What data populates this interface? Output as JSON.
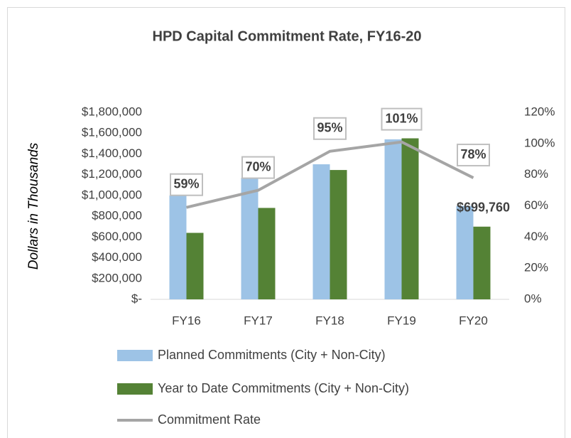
{
  "chart_data": {
    "type": "bar-line",
    "title": "HPD Capital Commitment Rate, FY16-20",
    "y_label": "Dollars in Thousands",
    "categories": [
      "FY16",
      "FY17",
      "FY18",
      "FY19",
      "FY20"
    ],
    "series": [
      {
        "name": "Planned Commitments (City + Non-City)",
        "type": "bar",
        "color": "#9dc3e6",
        "values": [
          1000000,
          1170000,
          1300000,
          1540000,
          900000
        ]
      },
      {
        "name": "Year to Date Commitments (City + Non-City)",
        "type": "bar",
        "color": "#548235",
        "values": [
          640000,
          880000,
          1245000,
          1550000,
          699760
        ],
        "value_labels": [
          null,
          null,
          null,
          null,
          "$699,760"
        ]
      },
      {
        "name": "Commitment Rate",
        "type": "line",
        "axis": "y2",
        "color": "#a5a5a5",
        "values": [
          59,
          70,
          95,
          101,
          78
        ],
        "value_labels": [
          "59%",
          "70%",
          "95%",
          "101%",
          "78%"
        ]
      }
    ],
    "ylim": [
      0,
      1800000
    ],
    "yticks": [
      {
        "value": 0,
        "label": "$-"
      },
      {
        "value": 200000,
        "label": "$200,000"
      },
      {
        "value": 400000,
        "label": "$400,000"
      },
      {
        "value": 600000,
        "label": "$600,000"
      },
      {
        "value": 800000,
        "label": "$800,000"
      },
      {
        "value": 1000000,
        "label": "$1,000,000"
      },
      {
        "value": 1200000,
        "label": "$1,200,000"
      },
      {
        "value": 1400000,
        "label": "$1,400,000"
      },
      {
        "value": 1600000,
        "label": "$1,600,000"
      },
      {
        "value": 1800000,
        "label": "$1,800,000"
      }
    ],
    "y2lim": [
      0,
      120
    ],
    "y2ticks": [
      {
        "value": 0,
        "label": "0%"
      },
      {
        "value": 20,
        "label": "20%"
      },
      {
        "value": 40,
        "label": "40%"
      },
      {
        "value": 60,
        "label": "60%"
      },
      {
        "value": 80,
        "label": "80%"
      },
      {
        "value": 100,
        "label": "100%"
      },
      {
        "value": 120,
        "label": "120%"
      }
    ],
    "grid": false,
    "legend": "bottom"
  }
}
